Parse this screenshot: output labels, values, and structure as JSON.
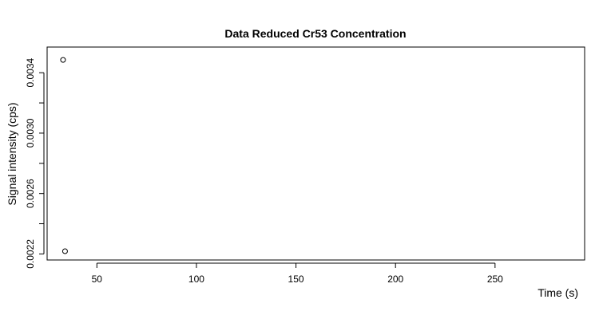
{
  "chart_data": {
    "type": "scatter",
    "title": "Data Reduced Cr53 Concentration",
    "xlabel": "Time (s)",
    "ylabel": "Signal intensity (cps)",
    "xlim": [
      25,
      295
    ],
    "ylim": [
      0.00216,
      0.00357
    ],
    "x_ticks": [
      50,
      100,
      150,
      200,
      250
    ],
    "x_tick_labels": [
      "50",
      "100",
      "150",
      "200",
      "250"
    ],
    "y_ticks": [
      0.0022,
      0.0024,
      0.0026,
      0.0028,
      0.003,
      0.0032,
      0.0034
    ],
    "y_tick_labels": [
      "0.0022",
      "",
      "0.0026",
      "",
      "0.0030",
      "",
      "0.0034"
    ],
    "grid": false,
    "points": [
      {
        "x": 33,
        "y": 0.003485
      },
      {
        "x": 34,
        "y": 0.002218
      }
    ]
  }
}
